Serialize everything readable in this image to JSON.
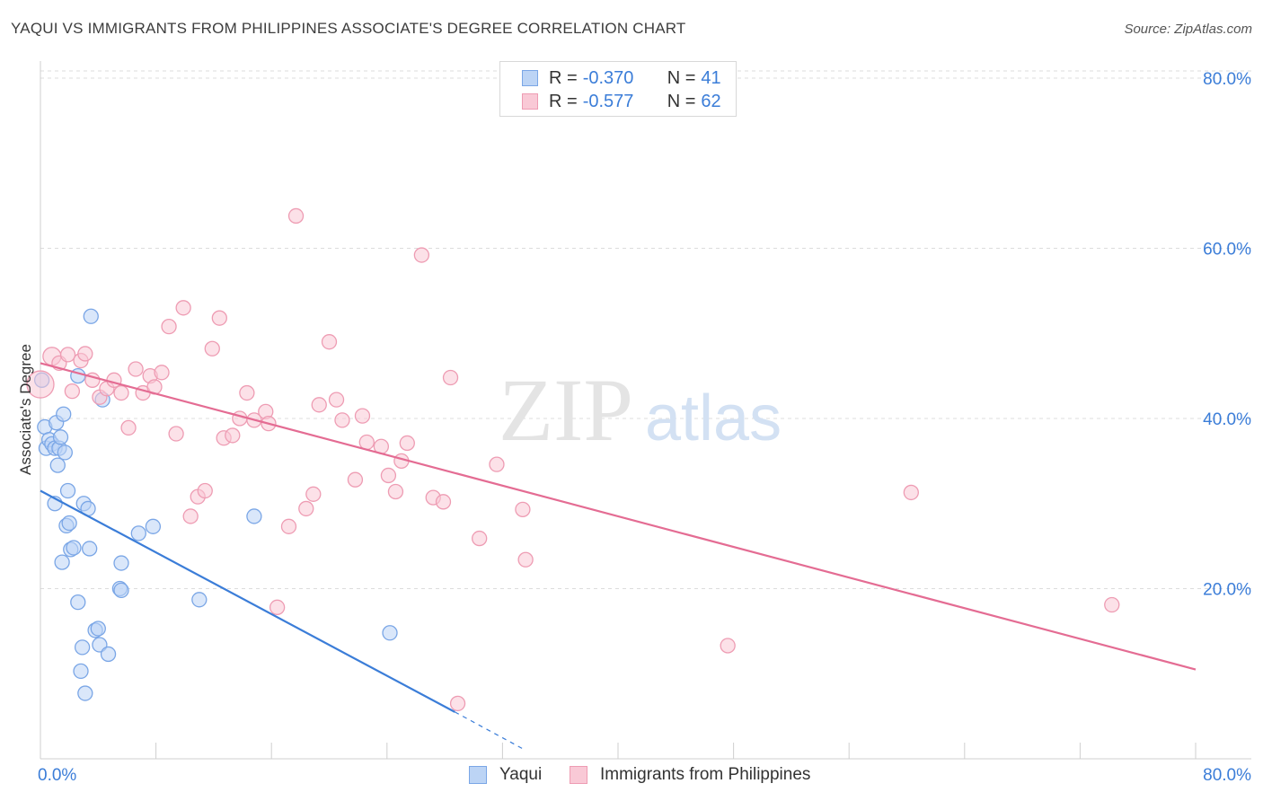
{
  "title": "YAQUI VS IMMIGRANTS FROM PHILIPPINES ASSOCIATE'S DEGREE CORRELATION CHART",
  "source": "Source: ZipAtlas.com",
  "watermark": {
    "zip": "ZIP",
    "atlas": "atlas"
  },
  "legend": [
    {
      "r_label": "R =",
      "r_value": "-0.370",
      "n_label": "N =",
      "n_value": "41",
      "fill": "#bcd4f5",
      "stroke": "#7aa6e6"
    },
    {
      "r_label": "R =",
      "r_value": "-0.577",
      "n_label": "N =",
      "n_value": "62",
      "fill": "#f9c9d6",
      "stroke": "#ee9cb3"
    }
  ],
  "bottom_legend": [
    {
      "label": "Yaqui",
      "fill": "#bcd4f5",
      "stroke": "#7aa6e6"
    },
    {
      "label": "Immigrants from Philippines",
      "fill": "#f9c9d6",
      "stroke": "#ee9cb3"
    }
  ],
  "chart_data": {
    "type": "scatter",
    "title": "YAQUI VS IMMIGRANTS FROM PHILIPPINES ASSOCIATE'S DEGREE CORRELATION CHART",
    "xlabel": "",
    "ylabel": "Associate's Degree",
    "xlim": [
      0,
      80
    ],
    "ylim": [
      0,
      82
    ],
    "x_tick_labels": [
      "0.0%",
      "80.0%"
    ],
    "y_tick_labels": [
      "20.0%",
      "40.0%",
      "60.0%",
      "80.0%"
    ],
    "y_ticks": [
      20,
      40,
      60,
      80
    ],
    "grid": true,
    "colors": {
      "blue": "#3b7dd8",
      "pink": "#e46c93",
      "tick_text": "#3b7dd8"
    },
    "series": [
      {
        "name": "Yaqui",
        "point_fill": "#bcd4f5",
        "point_stroke": "#7aa6e6",
        "line_color": "#3b7dd8",
        "trend": {
          "x": [
            0,
            28.7
          ],
          "y": [
            31.5,
            5.5
          ],
          "dashed_to": [
            33.6,
            1.0
          ]
        },
        "points": [
          [
            0.1,
            44.5
          ],
          [
            0.3,
            39
          ],
          [
            0.4,
            36.5
          ],
          [
            0.6,
            37.5
          ],
          [
            0.8,
            37
          ],
          [
            1.0,
            36.5
          ],
          [
            1.0,
            30
          ],
          [
            1.1,
            39.5
          ],
          [
            1.2,
            34.5
          ],
          [
            1.3,
            36.5
          ],
          [
            1.4,
            37.8
          ],
          [
            1.5,
            23.1
          ],
          [
            1.6,
            40.5
          ],
          [
            1.7,
            36
          ],
          [
            1.8,
            27.4
          ],
          [
            1.9,
            31.5
          ],
          [
            2.0,
            27.7
          ],
          [
            2.1,
            24.6
          ],
          [
            2.3,
            24.8
          ],
          [
            2.6,
            45
          ],
          [
            2.6,
            18.4
          ],
          [
            2.9,
            13.1
          ],
          [
            2.8,
            10.3
          ],
          [
            3.0,
            30
          ],
          [
            3.1,
            7.7
          ],
          [
            3.3,
            29.4
          ],
          [
            3.4,
            24.7
          ],
          [
            3.5,
            52
          ],
          [
            3.8,
            15.1
          ],
          [
            4.0,
            15.3
          ],
          [
            4.1,
            13.4
          ],
          [
            4.3,
            42.2
          ],
          [
            4.7,
            12.3
          ],
          [
            5.5,
            20
          ],
          [
            5.6,
            19.8
          ],
          [
            5.6,
            23
          ],
          [
            6.8,
            26.5
          ],
          [
            7.8,
            27.3
          ],
          [
            11.0,
            18.7
          ],
          [
            14.8,
            28.5
          ],
          [
            24.2,
            14.8
          ]
        ]
      },
      {
        "name": "Immigrants from Philippines",
        "point_fill": "#f9c9d6",
        "point_stroke": "#ee9cb3",
        "line_color": "#e46c93",
        "trend": {
          "x": [
            0,
            80
          ],
          "y": [
            46.5,
            10.5
          ]
        },
        "points": [
          [
            0.0,
            44
          ],
          [
            0.8,
            47.3
          ],
          [
            1.3,
            46.5
          ],
          [
            1.9,
            47.5
          ],
          [
            2.2,
            43.2
          ],
          [
            2.8,
            46.8
          ],
          [
            3.1,
            47.6
          ],
          [
            3.6,
            44.5
          ],
          [
            4.1,
            42.5
          ],
          [
            4.6,
            43.5
          ],
          [
            5.1,
            44.5
          ],
          [
            5.6,
            43
          ],
          [
            6.1,
            38.9
          ],
          [
            6.6,
            45.8
          ],
          [
            7.1,
            43
          ],
          [
            7.6,
            45
          ],
          [
            7.9,
            43.7
          ],
          [
            8.4,
            45.4
          ],
          [
            8.9,
            50.8
          ],
          [
            9.4,
            38.2
          ],
          [
            9.9,
            53
          ],
          [
            10.4,
            28.5
          ],
          [
            10.9,
            30.8
          ],
          [
            11.4,
            31.5
          ],
          [
            11.9,
            48.2
          ],
          [
            12.4,
            51.8
          ],
          [
            12.7,
            37.7
          ],
          [
            13.3,
            38
          ],
          [
            13.8,
            40
          ],
          [
            14.3,
            43
          ],
          [
            14.8,
            39.8
          ],
          [
            15.6,
            40.8
          ],
          [
            15.8,
            39.4
          ],
          [
            16.4,
            17.8
          ],
          [
            17.2,
            27.3
          ],
          [
            17.7,
            63.8
          ],
          [
            18.4,
            29.4
          ],
          [
            18.9,
            31.1
          ],
          [
            19.3,
            41.6
          ],
          [
            20.0,
            49
          ],
          [
            20.5,
            42.2
          ],
          [
            20.9,
            39.8
          ],
          [
            21.8,
            32.8
          ],
          [
            22.3,
            40.3
          ],
          [
            22.6,
            37.2
          ],
          [
            23.6,
            36.7
          ],
          [
            24.1,
            33.3
          ],
          [
            24.6,
            31.4
          ],
          [
            25.0,
            35
          ],
          [
            25.4,
            37.1
          ],
          [
            26.4,
            59.2
          ],
          [
            27.2,
            30.7
          ],
          [
            27.9,
            30.2
          ],
          [
            28.4,
            44.8
          ],
          [
            28.9,
            6.5
          ],
          [
            30.4,
            25.9
          ],
          [
            31.6,
            34.6
          ],
          [
            33.4,
            29.3
          ],
          [
            33.6,
            23.4
          ],
          [
            47.6,
            13.3
          ],
          [
            60.3,
            31.3
          ],
          [
            74.2,
            18.1
          ]
        ]
      }
    ]
  }
}
